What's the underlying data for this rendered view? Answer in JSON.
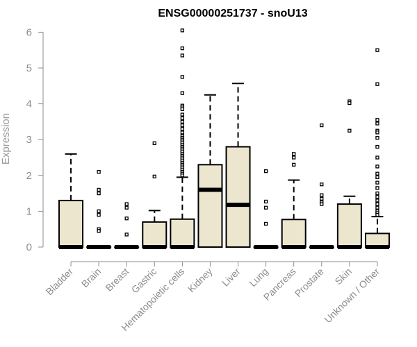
{
  "chart_data": {
    "type": "boxplot",
    "title": "ENSG00000251737 - snoU13",
    "xlabel": "",
    "ylabel": "Expression",
    "ylim": [
      0,
      6.1
    ],
    "yticks": [
      0,
      1,
      2,
      3,
      4,
      5,
      6
    ],
    "box_fill": "#ede6cf",
    "grid": false,
    "categories": [
      "Bladder",
      "Brain",
      "Breast",
      "Gastric",
      "Hematopoietic cells",
      "Kidney",
      "Liver",
      "Lung",
      "Pancreas",
      "Prostate",
      "Skin",
      "Unknown / Other"
    ],
    "boxes": [
      {
        "category": "Bladder",
        "q1": 0,
        "median": 0,
        "q3": 1.3,
        "whisker_low": 0,
        "whisker_high": 2.6,
        "outliers": []
      },
      {
        "category": "Brain",
        "q1": 0,
        "median": 0,
        "q3": 0,
        "whisker_low": 0,
        "whisker_high": 0,
        "outliers": [
          2.1,
          1.6,
          1.5,
          1.0,
          0.9,
          0.5,
          0.45
        ]
      },
      {
        "category": "Breast",
        "q1": 0,
        "median": 0,
        "q3": 0,
        "whisker_low": 0,
        "whisker_high": 0,
        "outliers": [
          1.2,
          1.1,
          0.8,
          0.35
        ]
      },
      {
        "category": "Gastric",
        "q1": 0,
        "median": 0,
        "q3": 0.7,
        "whisker_low": 0,
        "whisker_high": 1.02,
        "outliers": [
          2.9,
          1.97
        ]
      },
      {
        "category": "Hematopoietic cells",
        "q1": 0,
        "median": 0,
        "q3": 0.78,
        "whisker_low": 0,
        "whisker_high": 1.95,
        "outliers": [
          6.05,
          5.55,
          5.35,
          4.75,
          4.3,
          3.95,
          3.9,
          3.85,
          3.7,
          3.6,
          3.5,
          3.4,
          3.3,
          3.2,
          3.1,
          3.05,
          3.0,
          2.95,
          2.9,
          2.85,
          2.8,
          2.75,
          2.7,
          2.65,
          2.6,
          2.55,
          2.5,
          2.45,
          2.4,
          2.35,
          2.3,
          2.25,
          2.2,
          2.15,
          2.1,
          2.05,
          2.0
        ]
      },
      {
        "category": "Kidney",
        "q1": 0,
        "median": 1.6,
        "q3": 2.3,
        "whisker_low": 0,
        "whisker_high": 4.25,
        "outliers": []
      },
      {
        "category": "Liver",
        "q1": 0,
        "median": 1.18,
        "q3": 2.8,
        "whisker_low": 0,
        "whisker_high": 4.57,
        "outliers": []
      },
      {
        "category": "Lung",
        "q1": 0,
        "median": 0,
        "q3": 0,
        "whisker_low": 0,
        "whisker_high": 0,
        "outliers": [
          2.12,
          1.27,
          1.1,
          0.65
        ]
      },
      {
        "category": "Pancreas",
        "q1": 0,
        "median": 0,
        "q3": 0.77,
        "whisker_low": 0,
        "whisker_high": 1.87,
        "outliers": [
          2.6,
          2.5,
          2.3
        ]
      },
      {
        "category": "Prostate",
        "q1": 0,
        "median": 0,
        "q3": 0,
        "whisker_low": 0,
        "whisker_high": 0,
        "outliers": [
          3.4,
          1.75,
          1.45,
          1.35,
          1.25,
          1.2
        ]
      },
      {
        "category": "Skin",
        "q1": 0,
        "median": 0,
        "q3": 1.2,
        "whisker_low": 0,
        "whisker_high": 1.42,
        "outliers": [
          4.07,
          4.02,
          3.25
        ]
      },
      {
        "category": "Unknown / Other",
        "q1": 0,
        "median": 0,
        "q3": 0.38,
        "whisker_low": 0,
        "whisker_high": 0.85,
        "outliers": [
          5.5,
          4.55,
          3.55,
          3.45,
          3.25,
          3.2,
          3.05,
          2.8,
          2.5,
          2.25,
          2.05,
          1.95,
          1.8,
          1.65,
          1.5,
          1.4,
          1.3,
          1.2,
          1.1,
          1.0,
          0.95,
          0.9
        ]
      }
    ]
  }
}
